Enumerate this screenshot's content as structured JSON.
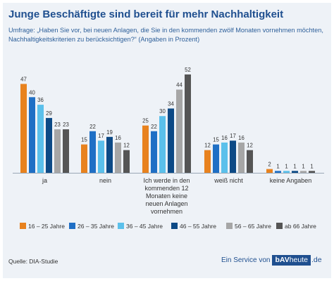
{
  "title": "Junge Beschäftigte sind bereit für mehr Nachhaltigkeit",
  "subtitle_line1": "Umfrage: „Haben Sie vor, bei neuen Anlagen, die Sie in den kommenden zwölf Monaten vornehmen möchten,",
  "subtitle_line2": "Nachhaltigkeitskriterien zu berücksichtigen?“ (Angaben in Prozent)",
  "source": "Quelle: DIA-Studie",
  "service": {
    "prefix": "Ein Service von",
    "logo_bold": "bAV",
    "logo_rest": "heute",
    "tld": ".de"
  },
  "chart_data": {
    "type": "bar",
    "categories": [
      "ja",
      "nein",
      "Ich werde in den kommenden 12 Monaten keine neuen Anlagen vornehmen",
      "weiß nicht",
      "keine Angaben"
    ],
    "category_label_lines": [
      [
        "ja"
      ],
      [
        "nein"
      ],
      [
        "Ich werde in den",
        "kommenden 12",
        "Monaten keine",
        "neuen Anlagen",
        "vornehmen"
      ],
      [
        "weiß nicht"
      ],
      [
        "keine Angaben"
      ]
    ],
    "series": [
      {
        "name": "16 – 25 Jahre",
        "color": "#e8821e",
        "values": [
          47,
          15,
          25,
          12,
          2
        ]
      },
      {
        "name": "26 – 35 Jahre",
        "color": "#1f6fc5",
        "values": [
          40,
          22,
          22,
          15,
          1
        ]
      },
      {
        "name": "36 – 45 Jahre",
        "color": "#5bc0eb",
        "values": [
          36,
          17,
          30,
          16,
          1
        ]
      },
      {
        "name": "46 – 55 Jahre",
        "color": "#0d4a86",
        "values": [
          29,
          19,
          34,
          17,
          1
        ]
      },
      {
        "name": "56 – 65 Jahre",
        "color": "#a6a6a6",
        "values": [
          23,
          16,
          44,
          16,
          1
        ]
      },
      {
        "name": "ab 66 Jahre",
        "color": "#555555",
        "values": [
          23,
          12,
          52,
          12,
          1
        ]
      }
    ],
    "ylim": [
      0,
      52
    ],
    "data_labels": true,
    "grid": false,
    "legend_position": "bottom"
  }
}
